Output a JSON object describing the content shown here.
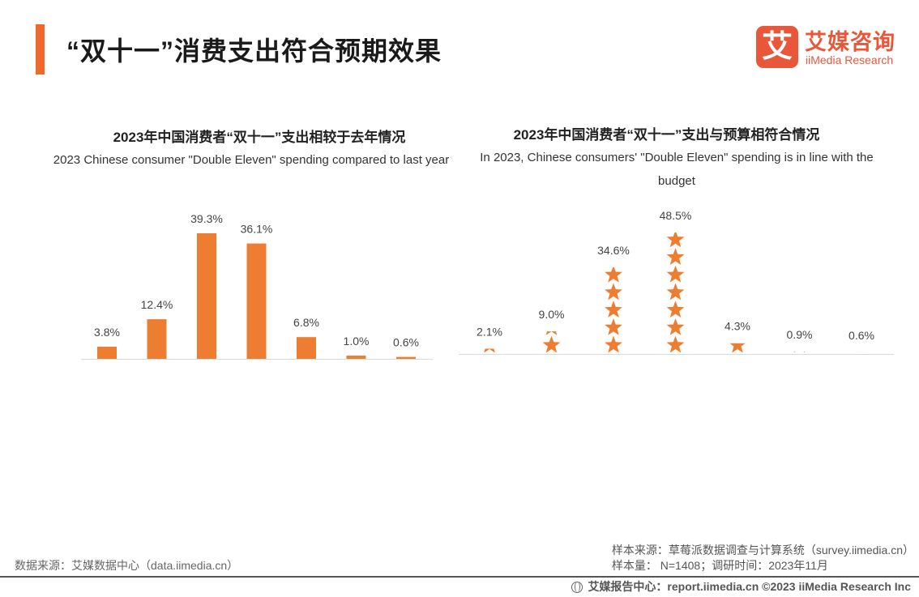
{
  "header": {
    "title": "“双十一”消费支出符合预期效果",
    "logo_mark": "艾",
    "logo_cn": "艾媒咨询",
    "logo_en": "iiMedia Research"
  },
  "colors": {
    "accent": "#ee6a2c",
    "bar": "#ed7d31",
    "axis": "#d9d9d9"
  },
  "chart_data": [
    {
      "type": "bar",
      "title": "2023年中国消费者“双十一”支出相较于去年情况",
      "subtitle": "2023 Chinese consumer \"Double Eleven\" spending compared to last year",
      "categories": [
        "",
        "",
        "",
        "",
        "",
        "",
        ""
      ],
      "values": [
        3.8,
        12.4,
        39.3,
        36.1,
        6.8,
        1.0,
        0.6
      ],
      "labels": [
        "3.8%",
        "12.4%",
        "39.3%",
        "36.1%",
        "6.8%",
        "1.0%",
        "0.6%"
      ],
      "unit": "%",
      "ylim": [
        0,
        39.3
      ]
    },
    {
      "type": "bar",
      "style": "pictogram-stars",
      "title": "2023年中国消费者“双十一”支出与预算相符合情况",
      "subtitle": "In 2023, Chinese consumers' \"Double Eleven\" spending is in line with the budget",
      "categories": [
        "",
        "",
        "",
        "",
        "",
        "",
        ""
      ],
      "values": [
        2.1,
        9.0,
        34.6,
        48.5,
        4.3,
        0.9,
        0.6
      ],
      "labels": [
        "2.1%",
        "9.0%",
        "34.6%",
        "48.5%",
        "4.3%",
        "0.9%",
        "0.6%"
      ],
      "unit": "%",
      "ylim": [
        0,
        48.5
      ]
    }
  ],
  "footer": {
    "source": "数据来源：艾媒数据中心（data.iimedia.cn）",
    "sample_source": "样本来源：草莓派数据调查与计算系统（survey.iimedia.cn）",
    "sample_size": "样本量： N=1408；调研时间：2023年11月",
    "report": "艾媒报告中心：report.iimedia.cn  ©2023  iiMedia Research  Inc"
  }
}
